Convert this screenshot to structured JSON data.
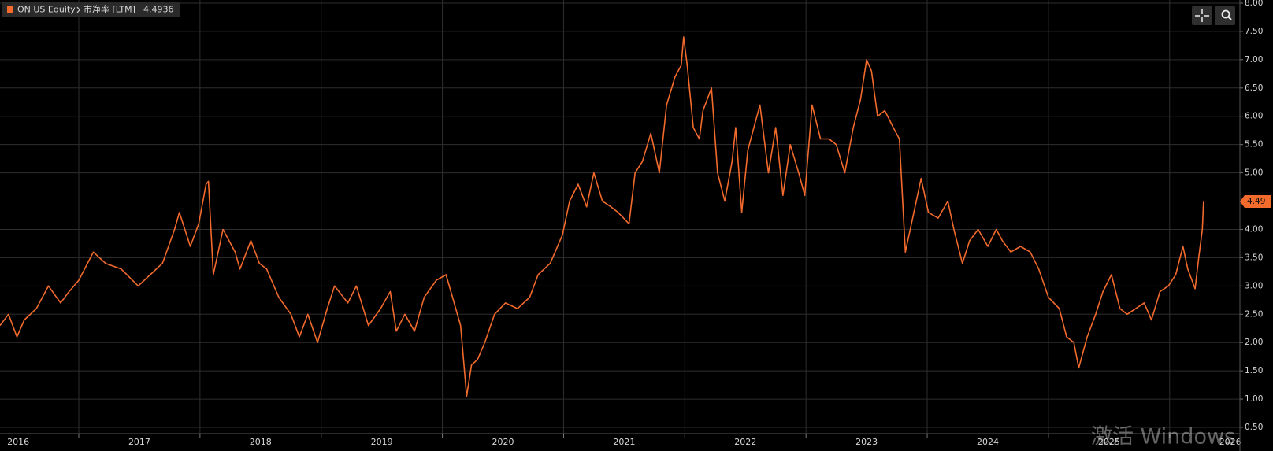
{
  "chart_data": {
    "type": "line",
    "x": [
      2016.35,
      2016.42,
      2016.49,
      2016.55,
      2016.65,
      2016.75,
      2016.85,
      2016.92,
      2017.0,
      2017.12,
      2017.22,
      2017.35,
      2017.49,
      2017.59,
      2017.69,
      2017.79,
      2017.83,
      2017.92,
      2017.99,
      2018.05,
      2018.07,
      2018.11,
      2018.19,
      2018.29,
      2018.33,
      2018.42,
      2018.49,
      2018.55,
      2018.65,
      2018.75,
      2018.82,
      2018.89,
      2018.97,
      2019.05,
      2019.11,
      2019.22,
      2019.29,
      2019.39,
      2019.49,
      2019.57,
      2019.62,
      2019.69,
      2019.77,
      2019.85,
      2019.95,
      2020.03,
      2020.07,
      2020.15,
      2020.2,
      2020.24,
      2020.29,
      2020.35,
      2020.43,
      2020.52,
      2020.62,
      2020.72,
      2020.79,
      2020.89,
      2020.99,
      2021.05,
      2021.12,
      2021.19,
      2021.25,
      2021.32,
      2021.39,
      2021.45,
      2021.54,
      2021.59,
      2021.65,
      2021.72,
      2021.79,
      2021.85,
      2021.92,
      2021.97,
      2021.99,
      2022.02,
      2022.07,
      2022.12,
      2022.15,
      2022.22,
      2022.27,
      2022.33,
      2022.39,
      2022.42,
      2022.47,
      2022.52,
      2022.57,
      2022.62,
      2022.69,
      2022.75,
      2022.81,
      2022.87,
      2022.94,
      2022.99,
      2023.05,
      2023.12,
      2023.19,
      2023.25,
      2023.32,
      2023.39,
      2023.45,
      2023.5,
      2023.54,
      2023.59,
      2023.65,
      2023.72,
      2023.77,
      2023.82,
      2023.87,
      2023.95,
      2024.01,
      2024.09,
      2024.17,
      2024.22,
      2024.29,
      2024.35,
      2024.42,
      2024.5,
      2024.57,
      2024.62,
      2024.69,
      2024.77,
      2024.85,
      2024.92,
      2025.0,
      2025.09,
      2025.15,
      2025.21,
      2025.25,
      2025.32,
      2025.39,
      2025.45,
      2025.52,
      2025.59,
      2025.65,
      2025.72,
      2025.79,
      2025.85,
      2025.92,
      2025.99,
      2026.05,
      2026.11,
      2026.15,
      2026.21,
      2026.24,
      2026.27,
      2026.28
    ],
    "series": [
      {
        "name": "ON US Equity",
        "field": "市净率 [LTM]",
        "color": "#f26a2c",
        "last_value": 4.4936,
        "last_value_label": "4.49",
        "values": [
          2.3,
          2.5,
          2.1,
          2.4,
          2.6,
          3.0,
          2.7,
          2.9,
          3.1,
          3.6,
          3.4,
          3.3,
          3.0,
          3.2,
          3.4,
          4.0,
          4.3,
          3.7,
          4.1,
          4.8,
          4.85,
          3.2,
          4.0,
          3.6,
          3.3,
          3.8,
          3.4,
          3.3,
          2.8,
          2.5,
          2.1,
          2.5,
          2.0,
          2.6,
          3.0,
          2.7,
          3.0,
          2.3,
          2.6,
          2.9,
          2.2,
          2.5,
          2.2,
          2.8,
          3.1,
          3.2,
          2.9,
          2.3,
          1.05,
          1.6,
          1.7,
          2.0,
          2.5,
          2.7,
          2.6,
          2.8,
          3.2,
          3.4,
          3.9,
          4.5,
          4.8,
          4.4,
          5.0,
          4.5,
          4.4,
          4.3,
          4.1,
          5.0,
          5.2,
          5.7,
          5.0,
          6.2,
          6.7,
          6.9,
          7.4,
          6.9,
          5.8,
          5.6,
          6.1,
          6.5,
          5.0,
          4.5,
          5.2,
          5.8,
          4.3,
          5.4,
          5.8,
          6.2,
          5.0,
          5.8,
          4.6,
          5.5,
          5.0,
          4.6,
          6.2,
          5.6,
          5.6,
          5.5,
          5.0,
          5.8,
          6.3,
          7.0,
          6.8,
          6.0,
          6.1,
          5.8,
          5.6,
          3.6,
          4.1,
          4.9,
          4.3,
          4.2,
          4.5,
          4.0,
          3.4,
          3.8,
          4.0,
          3.7,
          4.0,
          3.8,
          3.6,
          3.7,
          3.6,
          3.3,
          2.8,
          2.6,
          2.1,
          2.0,
          1.55,
          2.1,
          2.5,
          2.9,
          3.2,
          2.6,
          2.5,
          2.6,
          2.7,
          2.4,
          2.9,
          3.0,
          3.2,
          3.7,
          3.3,
          2.95,
          3.5,
          4.0,
          4.49
        ]
      }
    ],
    "xlim": [
      2016.35,
      2026.58
    ],
    "xticks": [
      2016,
      2017,
      2018,
      2019,
      2020,
      2021,
      2022,
      2023,
      2024,
      2025,
      2026
    ],
    "ylim": [
      0.5,
      8.0
    ],
    "yticks": [
      {
        "value": 0.5,
        "label": "0.50"
      },
      {
        "value": 1,
        "label": "1.00"
      },
      {
        "value": 1.5,
        "label": "1.50"
      },
      {
        "value": 2,
        "label": "2.00"
      },
      {
        "value": 2.5,
        "label": "2.50"
      },
      {
        "value": 3,
        "label": "3.00"
      },
      {
        "value": 3.5,
        "label": "3.50"
      },
      {
        "value": 4,
        "label": "4.00"
      },
      {
        "value": 4.5,
        "label": "4.50"
      },
      {
        "value": 5,
        "label": "5.00"
      },
      {
        "value": 5.5,
        "label": "5.50"
      },
      {
        "value": 6,
        "label": "6.00"
      },
      {
        "value": 6.5,
        "label": "6.50"
      },
      {
        "value": 7,
        "label": "7.00"
      },
      {
        "value": 7.5,
        "label": "7.50"
      },
      {
        "value": 8,
        "label": "8.00"
      }
    ],
    "grid": true,
    "watermark": "激活 Windows"
  }
}
